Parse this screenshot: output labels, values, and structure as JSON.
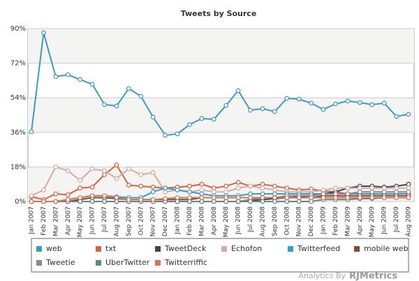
{
  "chart_data": {
    "type": "line",
    "title": "Tweets by Source",
    "categories": [
      "Jan 2007",
      "Feb 2007",
      "Mar 2007",
      "Apr 2007",
      "May 2007",
      "Jun 2007",
      "Jul 2007",
      "Aug 2007",
      "Sep 2007",
      "Oct 2007",
      "Nov 2007",
      "Dec 2007",
      "Jan 2008",
      "Feb 2008",
      "Mar 2008",
      "Apr 2008",
      "May 2008",
      "Jun 2008",
      "Jul 2008",
      "Aug 2008",
      "Sep 2008",
      "Oct 2008",
      "Nov 2008",
      "Dec 2008",
      "Jan 2009",
      "Feb 2009",
      "Mar 2009",
      "Apr 2009",
      "May 2009",
      "Jun 2009",
      "Jul 2009",
      "Aug 2009"
    ],
    "ylim": [
      0,
      90
    ],
    "yticks": [
      {
        "value": 0,
        "label": "0%"
      },
      {
        "value": 18,
        "label": "18%"
      },
      {
        "value": 36,
        "label": "36%"
      },
      {
        "value": 54,
        "label": "54%"
      },
      {
        "value": 72,
        "label": "72%"
      },
      {
        "value": 90,
        "label": "90%"
      }
    ],
    "grid": true,
    "legend": "bottom",
    "series": [
      {
        "name": "web",
        "color": "#3a9bc1",
        "values": [
          36.3,
          87.8,
          65,
          66,
          63.5,
          61,
          50.5,
          49.7,
          58.8,
          54.8,
          43.9,
          34.5,
          35.2,
          40,
          43.2,
          42.8,
          50,
          57.7,
          47.5,
          48.3,
          46.8,
          53.7,
          53.3,
          51.2,
          47.9,
          50.8,
          52.3,
          51.5,
          50.4,
          51.2,
          44.3,
          45.4
        ]
      },
      {
        "name": "txt",
        "color": "#d9623b",
        "values": [
          2.5,
          1,
          4,
          3.5,
          7,
          7.5,
          14,
          19,
          8.5,
          8,
          7.5,
          7,
          7.5,
          8,
          9,
          7,
          8,
          10,
          8,
          9,
          8,
          7,
          6,
          6.5,
          5.5,
          5,
          4,
          4,
          4,
          4,
          4,
          4
        ]
      },
      {
        "name": "TweetDeck",
        "color": "#444444",
        "values": [
          0,
          0,
          0,
          0,
          0,
          0,
          0,
          0,
          0,
          0,
          0,
          0,
          0,
          0,
          0,
          0,
          0,
          0,
          0.5,
          1,
          1.5,
          2,
          2.5,
          3,
          4,
          5,
          7,
          8,
          8,
          7.5,
          8,
          9
        ]
      },
      {
        "name": "Echofon",
        "color": "#d9a9a5",
        "values": [
          3,
          6,
          18,
          16,
          11,
          17,
          16,
          12,
          17,
          14,
          15,
          5,
          6,
          5,
          6,
          5,
          5,
          7,
          8,
          7,
          6,
          5,
          5,
          5,
          6,
          7,
          7,
          7,
          7,
          7,
          7,
          7
        ]
      },
      {
        "name": "Twitterfeed",
        "color": "#2f9fd0",
        "values": [
          0,
          0,
          0,
          1,
          2,
          3,
          3,
          2.5,
          2,
          2,
          5,
          7,
          6,
          5,
          4,
          3,
          3,
          3,
          4,
          4,
          4,
          4,
          4,
          4,
          4,
          4,
          4,
          4,
          4,
          4,
          4,
          4
        ]
      },
      {
        "name": "mobile web",
        "color": "#7a4a3a",
        "values": [
          0,
          0,
          0,
          0,
          1,
          2,
          2,
          1.5,
          1,
          1,
          1,
          1,
          1,
          1,
          2,
          2,
          2,
          2,
          2,
          2,
          2,
          2,
          2,
          2,
          3,
          3,
          3,
          3,
          3,
          3,
          3,
          3
        ]
      },
      {
        "name": "Tweetie",
        "color": "#888888",
        "values": [
          0,
          0,
          0,
          0,
          0,
          0,
          0,
          0,
          0,
          0,
          0,
          0,
          0,
          0,
          0,
          0,
          0,
          0,
          1,
          2,
          2,
          3,
          3,
          3,
          4,
          4,
          4,
          5,
          5,
          5,
          5,
          5
        ]
      },
      {
        "name": "UberTwitter",
        "color": "#5a8a8a",
        "values": [
          0,
          0,
          0,
          0,
          0,
          0,
          0,
          0,
          0,
          0,
          0,
          0,
          0,
          0,
          0,
          0,
          0,
          0,
          0,
          0,
          0,
          0,
          0,
          0,
          1,
          1,
          1,
          1.5,
          1.5,
          2,
          2,
          2
        ]
      },
      {
        "name": "Twitterriffic",
        "color": "#e07050",
        "values": [
          0,
          0,
          0,
          1,
          2,
          3,
          3,
          2,
          1,
          1,
          1,
          1.5,
          2,
          2,
          2,
          2,
          2,
          2,
          2,
          2,
          2,
          2,
          2,
          2,
          2,
          2,
          2,
          2,
          2,
          2,
          2,
          2
        ]
      }
    ],
    "footer": {
      "prefix": "Analytics By",
      "brand": "RJMetrics"
    }
  }
}
